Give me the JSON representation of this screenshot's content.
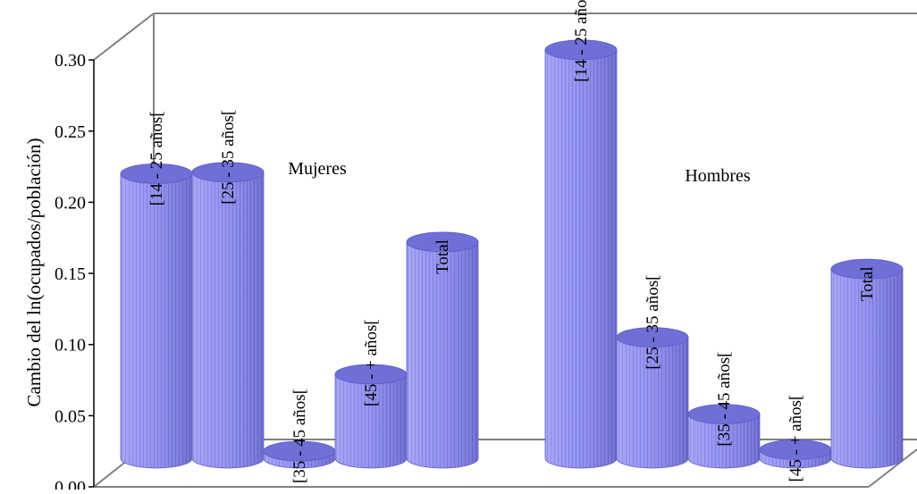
{
  "chart_data": {
    "type": "bar",
    "style": "3d-cylinder",
    "ylabel": "Cambio del ln(ocupados/población)",
    "xlabel": "",
    "title": "",
    "ylim": [
      0,
      0.3
    ],
    "yticks": [
      "0.00",
      "0.05",
      "0.10",
      "0.15",
      "0.20",
      "0.25",
      "0.30"
    ],
    "bar_color": "#8f8ff0",
    "bar_top_color": "#6f6fd8",
    "grid": false,
    "groups": [
      {
        "name": "Mujeres",
        "bars": [
          {
            "label": "[14 - 25 años[",
            "value": 0.2
          },
          {
            "label": "[25 - 35 años[",
            "value": 0.201
          },
          {
            "label": "[35 - 45 años[",
            "value": 0.005
          },
          {
            "label": "[45 - + años[",
            "value": 0.059
          },
          {
            "label": "Total",
            "value": 0.152
          }
        ]
      },
      {
        "name": "Hombres",
        "bars": [
          {
            "label": "[14 - 25 años[",
            "value": 0.287
          },
          {
            "label": "[25 - 35 años[",
            "value": 0.085
          },
          {
            "label": "[35 - 45 años[",
            "value": 0.031
          },
          {
            "label": "[45 - + años[",
            "value": 0.006
          },
          {
            "label": "Total",
            "value": 0.133
          }
        ]
      }
    ]
  }
}
